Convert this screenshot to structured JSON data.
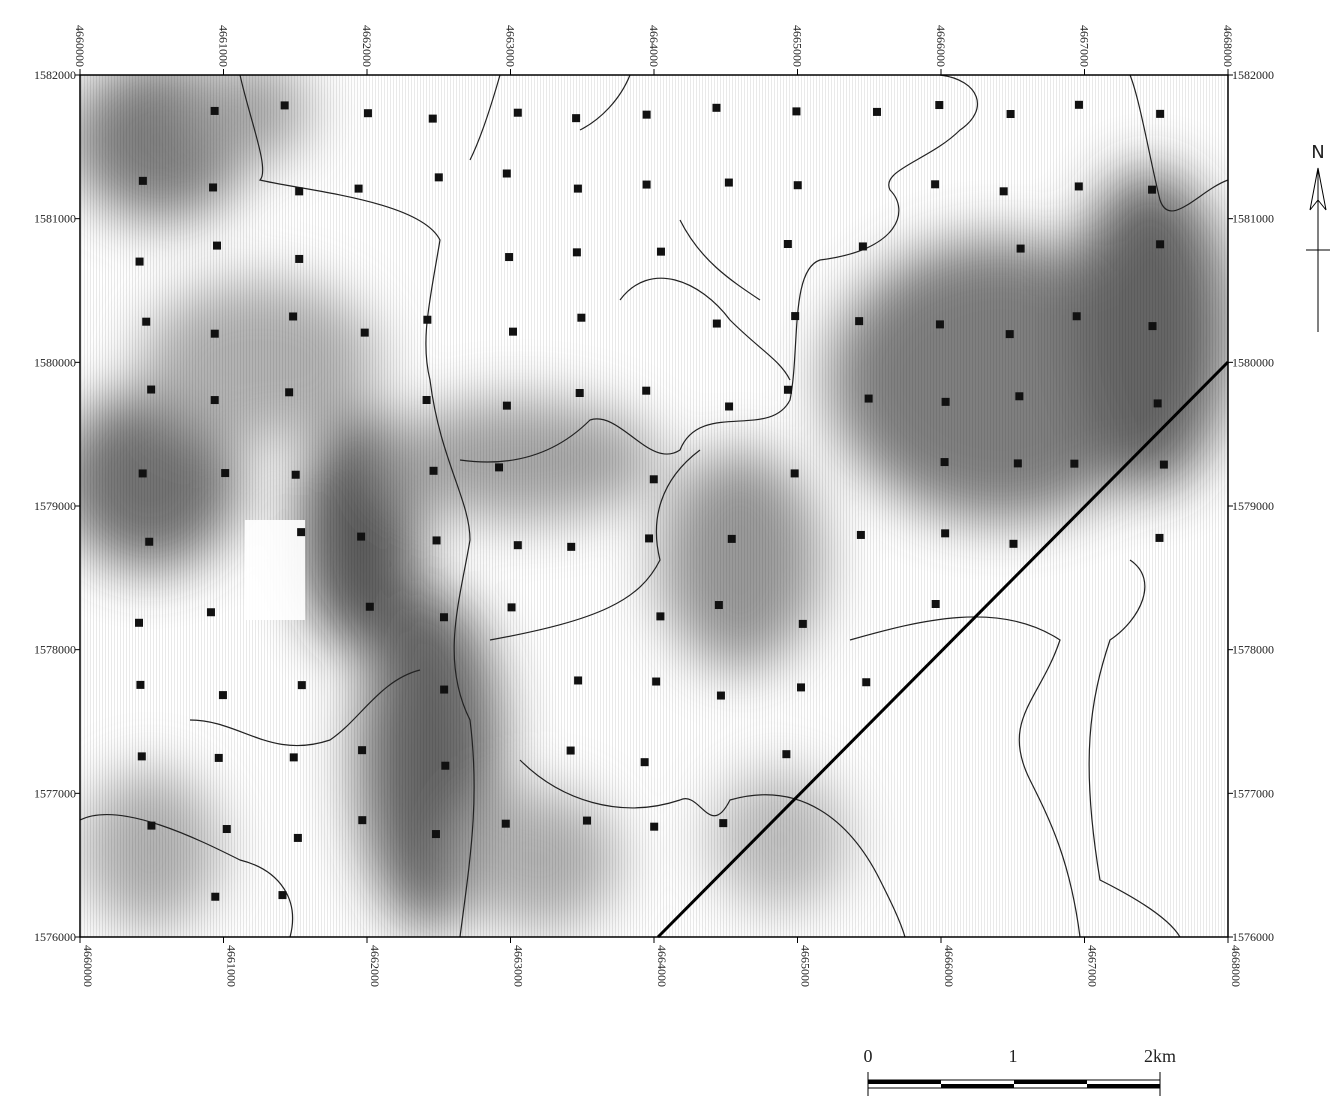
{
  "map": {
    "x_ticks": [
      4660000,
      4661000,
      4662000,
      4663000,
      4664000,
      4665000,
      4666000,
      4667000,
      4668000
    ],
    "y_ticks": [
      1576000,
      1577000,
      1578000,
      1579000,
      1580000,
      1581000,
      1582000
    ],
    "north_label": "N",
    "scale_bar": {
      "labels": [
        "0",
        "1",
        "2km"
      ]
    }
  }
}
